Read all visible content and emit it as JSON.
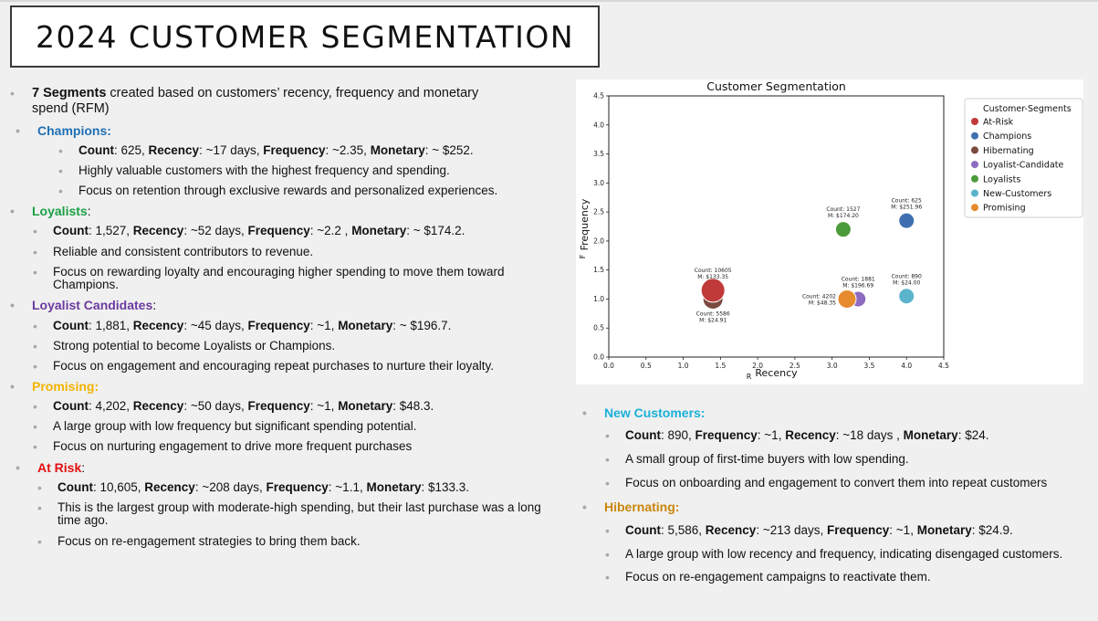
{
  "title": "2024 CUSTOMER SEGMENTATION",
  "intro": {
    "bold": "7 Segments",
    "rest": " created based on customers’ recency, frequency and monetary spend (RFM)"
  },
  "segments": {
    "champions": {
      "heading": "Champions:",
      "stats": [
        {
          "label": "Count",
          "value": ": 625, "
        },
        {
          "label": "Recency",
          "value": ": ~17 days, "
        },
        {
          "label": "Frequency",
          "value": ": ~2.35, "
        },
        {
          "label": "Monetary",
          "value": ": ~ $252."
        }
      ],
      "bullets": [
        "Highly valuable customers with the highest frequency and spending.",
        "Focus on retention through exclusive rewards and personalized experiences."
      ]
    },
    "loyalists": {
      "heading": "Loyalists",
      "colon": ":",
      "stats": [
        {
          "label": "Count",
          "value": ": 1,527, "
        },
        {
          "label": "Recency",
          "value": ": ~52 days, "
        },
        {
          "label": "Frequency",
          "value": ": ~2.2 , "
        },
        {
          "label": "Monetary",
          "value": ": ~ $174.2."
        }
      ],
      "bullets": [
        "Reliable and consistent contributors to revenue.",
        "Focus on rewarding loyalty and encouraging higher spending to move them toward Champions."
      ]
    },
    "candidates": {
      "heading": "Loyalist Candidates",
      "colon": ":",
      "stats": [
        {
          "label": "Count",
          "value": ": 1,881, "
        },
        {
          "label": "Recency",
          "value": ": ~45 days, "
        },
        {
          "label": "Frequency",
          "value": ": ~1, "
        },
        {
          "label": "Monetary",
          "value": ": ~ $196.7."
        }
      ],
      "bullets": [
        "Strong potential to become Loyalists or Champions.",
        "Focus on engagement and encouraging repeat purchases to nurture their loyalty."
      ]
    },
    "promising": {
      "heading": "Promising:",
      "stats": [
        {
          "label": "Count",
          "value": ": 4,202, "
        },
        {
          "label": "Recency",
          "value": ": ~50 days, "
        },
        {
          "label": "Frequency",
          "value": ": ~1, "
        },
        {
          "label": "Monetary",
          "value": ": $48.3."
        }
      ],
      "bullets": [
        "A large group with low frequency but significant spending potential.",
        "Focus on nurturing engagement to drive more frequent purchases"
      ]
    },
    "at_risk": {
      "heading": "At Risk",
      "colon": ":",
      "stats": [
        {
          "label": "Count",
          "value": ": 10,605, "
        },
        {
          "label": "Recency",
          "value": ": ~208 days, "
        },
        {
          "label": "Frequency",
          "value": ": ~1.1, "
        },
        {
          "label": "Monetary",
          "value": ": $133.3."
        }
      ],
      "bullets": [
        "This is the largest group with moderate-high spending, but their last purchase was a long time ago.",
        "Focus on re-engagement strategies to bring them back."
      ]
    },
    "new_customers": {
      "heading": "New Customers:",
      "stats": [
        {
          "label": "Count",
          "value": ": 890, "
        },
        {
          "label": "Frequency",
          "value": ": ~1, "
        },
        {
          "label": "Recency",
          "value": ": ~18 days , "
        },
        {
          "label": "Monetary",
          "value": ": $24."
        }
      ],
      "bullets": [
        "A small group of first-time buyers with low spending.",
        "Focus on onboarding and engagement to convert  them into repeat customers"
      ]
    },
    "hibernating": {
      "heading": "Hibernating:",
      "stats": [
        {
          "label": "Count",
          "value": ": 5,586, "
        },
        {
          "label": "Recency",
          "value": ": ~213 days, "
        },
        {
          "label": "Frequency",
          "value": ": ~1, "
        },
        {
          "label": "Monetary",
          "value": ": $24.9."
        }
      ],
      "bullets": [
        "A large group with low recency and frequency, indicating disengaged customers.",
        "Focus on re-engagement campaigns to reactivate them."
      ]
    }
  },
  "chart_data": {
    "type": "scatter",
    "title": "Customer Segmentation",
    "xlabel": "Recency",
    "xlabel_prefix": "R",
    "ylabel": "Frequency",
    "ylabel_prefix": "F",
    "xlim": [
      0,
      4.5
    ],
    "ylim": [
      0,
      4.5
    ],
    "xticks": [
      "0.0",
      "0.5",
      "1.0",
      "1.5",
      "2.0",
      "2.5",
      "3.0",
      "3.5",
      "4.0",
      "4.5"
    ],
    "yticks": [
      "0.0",
      "0.5",
      "1.0",
      "1.5",
      "2.0",
      "2.5",
      "3.0",
      "3.5",
      "4.0",
      "4.5"
    ],
    "grid": false,
    "legend_title": "Customer-Segments",
    "legend_position": "outside-right-top",
    "series": [
      {
        "name": "At-Risk",
        "color": "#c03a3a",
        "x": 1.4,
        "y": 1.15,
        "count": "Count: 10605",
        "monetary": "M: $133.35",
        "label_pos": "above"
      },
      {
        "name": "Champions",
        "color": "#3f6fb0",
        "x": 4.0,
        "y": 2.35,
        "count": "Count: 625",
        "monetary": "M: $251.96",
        "label_pos": "above"
      },
      {
        "name": "Hibernating",
        "color": "#7a4a3e",
        "x": 1.4,
        "y": 1.0,
        "count": "Count: 5586",
        "monetary": "M: $24.91",
        "label_pos": "below"
      },
      {
        "name": "Loyalist-Candidate",
        "color": "#8c6bc0",
        "x": 3.35,
        "y": 1.0,
        "count": "Count: 1881",
        "monetary": "M: $196.69",
        "label_pos": "above"
      },
      {
        "name": "Loyalists",
        "color": "#4d9a3a",
        "x": 3.15,
        "y": 2.2,
        "count": "Count: 1527",
        "monetary": "M: $174.20",
        "label_pos": "above"
      },
      {
        "name": "New-Customers",
        "color": "#5bb3cc",
        "x": 4.0,
        "y": 1.05,
        "count": "Count: 890",
        "monetary": "M: $24.00",
        "label_pos": "above"
      },
      {
        "name": "Promising",
        "color": "#e68a2e",
        "x": 3.2,
        "y": 1.0,
        "count": "Count: 4202",
        "monetary": "M: $48.35",
        "label_pos": "left"
      }
    ]
  }
}
